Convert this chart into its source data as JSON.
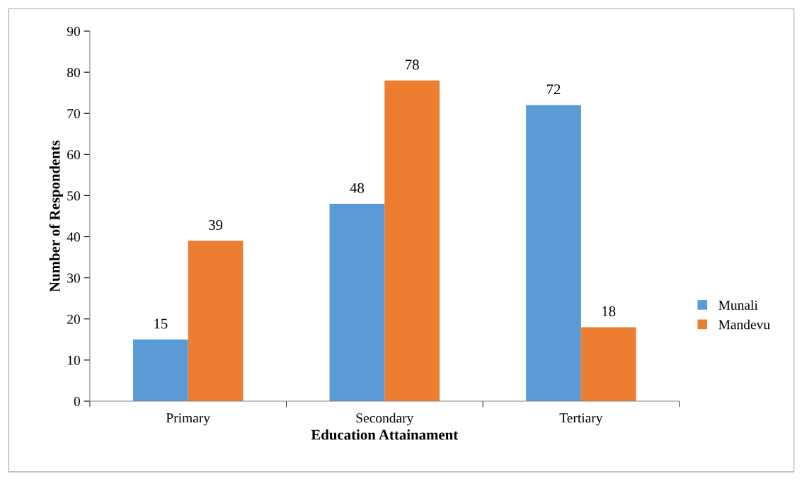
{
  "chart_data": {
    "type": "bar",
    "xlabel": "Education Attainament",
    "ylabel": "Number of Respondents",
    "categories": [
      "Primary",
      "Secondary",
      "Tertiary"
    ],
    "series": [
      {
        "name": "Munali",
        "color": "#5b9bd5",
        "values": [
          15,
          48,
          72
        ]
      },
      {
        "name": "Mandevu",
        "color": "#ed7d31",
        "values": [
          39,
          78,
          18
        ]
      }
    ],
    "ylim": [
      0,
      90
    ],
    "yticks": [
      0,
      10,
      20,
      30,
      40,
      50,
      60,
      70,
      80,
      90
    ],
    "data_labels": true,
    "grid": false,
    "legend": "right"
  }
}
